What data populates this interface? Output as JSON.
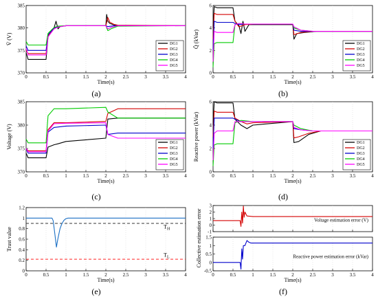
{
  "panel_labels": [
    "(a)",
    "(b)",
    "(c)",
    "(d)",
    "(e)",
    "(f)"
  ],
  "chart_data": [
    {
      "id": "a",
      "type": "line",
      "xlabel": "Time(s)",
      "ylabel": "V̄ (V)",
      "xlim": [
        0,
        4
      ],
      "ylim": [
        370,
        385
      ],
      "xticks": [
        "0",
        "0.5",
        "1",
        "1.5",
        "2",
        "2.5",
        "3",
        "3.5",
        "4"
      ],
      "yticks": [
        "370",
        "375",
        "380",
        "385"
      ],
      "legend_position": "lower-right",
      "series": [
        {
          "name": "DG1",
          "color": "#000000",
          "x": [
            0,
            0.05,
            0.5,
            0.55,
            0.7,
            0.75,
            0.8,
            0.85,
            1.0,
            2.0,
            2.02,
            2.05,
            2.1,
            2.2,
            2.3,
            4
          ],
          "y": [
            374.5,
            373,
            373,
            378,
            380,
            381.5,
            379.8,
            380.3,
            380.5,
            380.5,
            383,
            381.5,
            381,
            380.7,
            380.5,
            380.5
          ]
        },
        {
          "name": "DG2",
          "color": "#d40000",
          "x": [
            0,
            0.05,
            0.5,
            0.55,
            0.7,
            0.8,
            1.0,
            2.0,
            2.05,
            2.1,
            2.2,
            2.3,
            4
          ],
          "y": [
            375,
            374.3,
            374.3,
            378.3,
            379.8,
            380.3,
            380.5,
            380.5,
            382.3,
            381.3,
            380.8,
            380.6,
            380.5
          ]
        },
        {
          "name": "DG3",
          "color": "#0000cc",
          "x": [
            0,
            0.05,
            0.5,
            0.55,
            0.7,
            0.8,
            1.0,
            2.0,
            2.05,
            2.2,
            2.3,
            4
          ],
          "y": [
            376,
            375,
            375,
            378.5,
            380,
            380.3,
            380.5,
            380.5,
            380.3,
            380.5,
            380.5,
            380.5
          ]
        },
        {
          "name": "DG4",
          "color": "#00cc00",
          "x": [
            0,
            0.05,
            0.5,
            0.55,
            0.7,
            0.8,
            1.0,
            2.0,
            2.05,
            2.15,
            2.3,
            4
          ],
          "y": [
            377,
            376.2,
            376.2,
            378.8,
            380.1,
            380.4,
            380.5,
            380.5,
            379.4,
            379.9,
            380.4,
            380.5
          ]
        },
        {
          "name": "DG5",
          "color": "#ff00ff",
          "x": [
            0,
            0.05,
            0.5,
            0.55,
            0.7,
            0.8,
            1.0,
            2.0,
            2.05,
            2.15,
            2.3,
            4
          ],
          "y": [
            375.5,
            374,
            374,
            378,
            379.8,
            380.2,
            380.5,
            380.5,
            379.8,
            380.2,
            380.5,
            380.5
          ]
        }
      ]
    },
    {
      "id": "b",
      "type": "line",
      "xlabel": "Time(s)",
      "ylabel": "Q̄ (kVar)",
      "xlim": [
        0,
        4
      ],
      "ylim": [
        0,
        6
      ],
      "xticks": [
        "0",
        "0.5",
        "1",
        "1.5",
        "2",
        "2.5",
        "3",
        "3.5",
        "4"
      ],
      "yticks": [
        "0",
        "2",
        "4",
        "6"
      ],
      "legend_position": "lower-right",
      "series": [
        {
          "name": "DG1",
          "color": "#000000",
          "x": [
            0,
            0.03,
            0.1,
            0.5,
            0.55,
            0.65,
            0.7,
            0.75,
            0.8,
            0.9,
            1.0,
            2.0,
            2.03,
            2.1,
            2.3,
            2.6,
            4
          ],
          "y": [
            4,
            5.9,
            5.8,
            5.8,
            4.6,
            4.2,
            3.5,
            4.6,
            3.7,
            4.3,
            4.3,
            4.3,
            3.0,
            3.5,
            3.6,
            3.7,
            3.7
          ]
        },
        {
          "name": "DG2",
          "color": "#d40000",
          "x": [
            0,
            0.03,
            0.1,
            0.5,
            0.55,
            0.65,
            0.8,
            1.0,
            2.0,
            2.03,
            2.2,
            2.5,
            4
          ],
          "y": [
            3,
            5.3,
            5.2,
            5.2,
            4.6,
            4.1,
            4.3,
            4.35,
            4.35,
            3.4,
            3.6,
            3.7,
            3.7
          ]
        },
        {
          "name": "DG3",
          "color": "#0000cc",
          "x": [
            0,
            0.03,
            0.1,
            0.5,
            0.55,
            0.65,
            0.8,
            1.0,
            2.0,
            2.03,
            2.2,
            2.5,
            4
          ],
          "y": [
            2,
            4.6,
            4.5,
            4.5,
            4.4,
            4.3,
            4.35,
            4.35,
            4.35,
            3.8,
            3.7,
            3.7,
            3.7
          ]
        },
        {
          "name": "DG4",
          "color": "#00cc00",
          "x": [
            0,
            0.03,
            0.1,
            0.5,
            0.55,
            0.65,
            0.8,
            1.0,
            2.0,
            2.03,
            2.2,
            2.5,
            4
          ],
          "y": [
            0.5,
            2.6,
            2.7,
            2.7,
            4.3,
            4.4,
            4.35,
            4.35,
            4.35,
            4.0,
            3.8,
            3.7,
            3.7
          ]
        },
        {
          "name": "DG5",
          "color": "#ff00ff",
          "x": [
            0,
            0.03,
            0.1,
            0.5,
            0.55,
            0.65,
            0.8,
            1.0,
            2.0,
            2.03,
            2.2,
            2.5,
            4
          ],
          "y": [
            1,
            3.7,
            3.6,
            3.6,
            4.3,
            4.4,
            4.35,
            4.35,
            4.35,
            4.1,
            3.8,
            3.7,
            3.7
          ]
        }
      ]
    },
    {
      "id": "c",
      "type": "line",
      "xlabel": "Time(s)",
      "ylabel": "Voltage (V)",
      "xlim": [
        0,
        4
      ],
      "ylim": [
        370,
        385
      ],
      "xticks": [
        "0",
        "0.5",
        "1",
        "1.5",
        "2",
        "2.5",
        "3",
        "3.5",
        "4"
      ],
      "yticks": [
        "370",
        "375",
        "380",
        "385"
      ],
      "legend_position": "lower-right",
      "series": [
        {
          "name": "DG1",
          "color": "#000000",
          "x": [
            0,
            0.05,
            0.5,
            0.55,
            0.7,
            0.8,
            1.0,
            2.0,
            2.05,
            2.3,
            4
          ],
          "y": [
            374,
            373,
            373,
            375.3,
            375.8,
            376,
            376.5,
            377.2,
            381.3,
            381.5,
            381.5
          ]
        },
        {
          "name": "DG2",
          "color": "#d40000",
          "x": [
            0,
            0.05,
            0.5,
            0.55,
            0.7,
            1.0,
            2.0,
            2.05,
            2.3,
            4
          ],
          "y": [
            375,
            374.5,
            374.5,
            379,
            380.5,
            380.5,
            380.8,
            382.5,
            383.5,
            383.5
          ]
        },
        {
          "name": "DG3",
          "color": "#0000cc",
          "x": [
            0,
            0.05,
            0.5,
            0.55,
            0.7,
            1.0,
            2.0,
            2.05,
            2.3,
            4
          ],
          "y": [
            375,
            374,
            374,
            378.5,
            379.5,
            379.8,
            380,
            378,
            378.3,
            378.3
          ]
        },
        {
          "name": "DG4",
          "color": "#00cc00",
          "x": [
            0,
            0.05,
            0.5,
            0.55,
            0.7,
            1.0,
            2.0,
            2.05,
            2.3,
            4
          ],
          "y": [
            377,
            376.2,
            376.2,
            382,
            383.5,
            383.5,
            383.8,
            382.8,
            381.5,
            381.5
          ]
        },
        {
          "name": "DG5",
          "color": "#ff00ff",
          "x": [
            0,
            0.05,
            0.5,
            0.55,
            0.7,
            1.0,
            2.0,
            2.05,
            2.3,
            4
          ],
          "y": [
            375,
            374.3,
            374.3,
            378.7,
            380.3,
            380.4,
            380.5,
            378,
            377.2,
            377.2
          ]
        }
      ]
    },
    {
      "id": "d",
      "type": "line",
      "xlabel": "Time(s)",
      "ylabel": "Reactive power (kVar)",
      "xlim": [
        0,
        4
      ],
      "ylim": [
        0,
        6
      ],
      "xticks": [
        "0",
        "0.5",
        "1",
        "1.5",
        "2",
        "2.5",
        "3",
        "3.5",
        "4"
      ],
      "yticks": [
        "0",
        "2",
        "4",
        "6"
      ],
      "legend_position": "lower-right",
      "series": [
        {
          "name": "DG1",
          "color": "#000000",
          "x": [
            0,
            0.03,
            0.1,
            0.5,
            0.55,
            0.7,
            0.85,
            1.0,
            2.0,
            2.03,
            2.15,
            2.4,
            2.7,
            4
          ],
          "y": [
            4,
            6,
            5.9,
            5.9,
            4.5,
            4,
            3.7,
            4.0,
            4.3,
            2.5,
            2.6,
            3.2,
            3.5,
            3.5
          ]
        },
        {
          "name": "DG2",
          "color": "#d40000",
          "x": [
            0,
            0.03,
            0.1,
            0.5,
            0.55,
            0.7,
            0.85,
            1.0,
            2.0,
            2.03,
            2.15,
            2.4,
            2.7,
            4
          ],
          "y": [
            3,
            5.2,
            5.1,
            5.1,
            4.6,
            4.3,
            4.1,
            4.2,
            4.3,
            2.9,
            3.0,
            3.3,
            3.5,
            3.5
          ]
        },
        {
          "name": "DG3",
          "color": "#0000cc",
          "x": [
            0,
            0.03,
            0.1,
            0.5,
            0.55,
            0.7,
            1.0,
            2.0,
            2.03,
            2.2,
            2.5,
            4
          ],
          "y": [
            2,
            4.6,
            4.6,
            4.6,
            4.5,
            4.3,
            4.3,
            4.3,
            3.7,
            3.6,
            3.5,
            3.5
          ]
        },
        {
          "name": "DG4",
          "color": "#00cc00",
          "x": [
            0,
            0.03,
            0.1,
            0.5,
            0.55,
            0.7,
            1.0,
            2.0,
            2.03,
            2.2,
            2.5,
            4
          ],
          "y": [
            0.5,
            2.3,
            2.4,
            2.4,
            4.2,
            4.4,
            4.3,
            4.3,
            4.0,
            3.7,
            3.5,
            3.5
          ]
        },
        {
          "name": "DG5",
          "color": "#ff00ff",
          "x": [
            0,
            0.03,
            0.1,
            0.5,
            0.55,
            0.7,
            1.0,
            2.0,
            2.03,
            2.2,
            2.5,
            4
          ],
          "y": [
            1,
            3.3,
            3.5,
            3.5,
            4.3,
            4.3,
            4.3,
            4.3,
            3.8,
            3.6,
            3.5,
            3.5
          ]
        }
      ]
    },
    {
      "id": "e",
      "type": "line",
      "xlabel": "Time(s)",
      "ylabel": "Trust value",
      "xlim": [
        0,
        4
      ],
      "ylim": [
        0,
        1.2
      ],
      "xticks": [
        "0",
        "0.5",
        "1",
        "1.5",
        "2",
        "2.5",
        "3",
        "3.5",
        "4"
      ],
      "yticks": [
        "0",
        "0.2",
        "0.4",
        "0.6",
        "0.8",
        "1",
        "1.2"
      ],
      "annotations": [
        {
          "text": "TH",
          "x": 3.45,
          "y": 0.8
        },
        {
          "text": "TL",
          "x": 3.45,
          "y": 0.27
        }
      ],
      "thresholds": [
        {
          "label": "TH",
          "y": 0.9,
          "color": "#333333"
        },
        {
          "label": "TL",
          "y": 0.22,
          "color": "#ff2222"
        }
      ],
      "series": [
        {
          "color": "#1a6fc4",
          "x": [
            0,
            0.65,
            0.68,
            0.72,
            0.76,
            0.8,
            0.85,
            0.9,
            0.95,
            1.0,
            1.05,
            4
          ],
          "y": [
            1,
            1,
            0.95,
            0.7,
            0.45,
            0.62,
            0.8,
            0.9,
            0.96,
            0.99,
            1,
            1
          ]
        }
      ]
    },
    {
      "id": "f",
      "type": "line",
      "xlabel": "Time(s)",
      "ylabel": "Collective estimation error",
      "subplots": [
        {
          "label": "Voltage estimation error (V)",
          "xlim": [
            0,
            4
          ],
          "ylim": [
            -1,
            3
          ],
          "yticks": [
            "-1",
            "0",
            "1",
            "2",
            "3"
          ],
          "series": [
            {
              "color": "#d40000",
              "x": [
                0,
                0.68,
                0.7,
                0.72,
                0.74,
                0.76,
                0.78,
                0.8,
                0.85,
                1.0,
                4
              ],
              "y": [
                0.7,
                0.7,
                -0.2,
                2.0,
                0.3,
                2.9,
                1.2,
                2.0,
                1.4,
                1.3,
                1.3
              ]
            }
          ]
        },
        {
          "label": "Reactive power estimation error (kVar)",
          "xlim": [
            0,
            4
          ],
          "ylim": [
            -0.5,
            1.5
          ],
          "yticks": [
            "-0.5",
            "0",
            "0.5",
            "1",
            "1.5"
          ],
          "series": [
            {
              "color": "#0000cc",
              "x": [
                0,
                0.68,
                0.7,
                0.72,
                0.74,
                0.76,
                0.8,
                0.85,
                0.9,
                0.95,
                4
              ],
              "y": [
                0,
                0,
                -0.4,
                0.8,
                0.2,
                1.0,
                1.0,
                1.3,
                1.2,
                1.15,
                1.15
              ]
            }
          ]
        }
      ],
      "xticks": [
        "0",
        "0.5",
        "1",
        "1.5",
        "2",
        "2.5",
        "3",
        "3.5",
        "4"
      ]
    }
  ]
}
